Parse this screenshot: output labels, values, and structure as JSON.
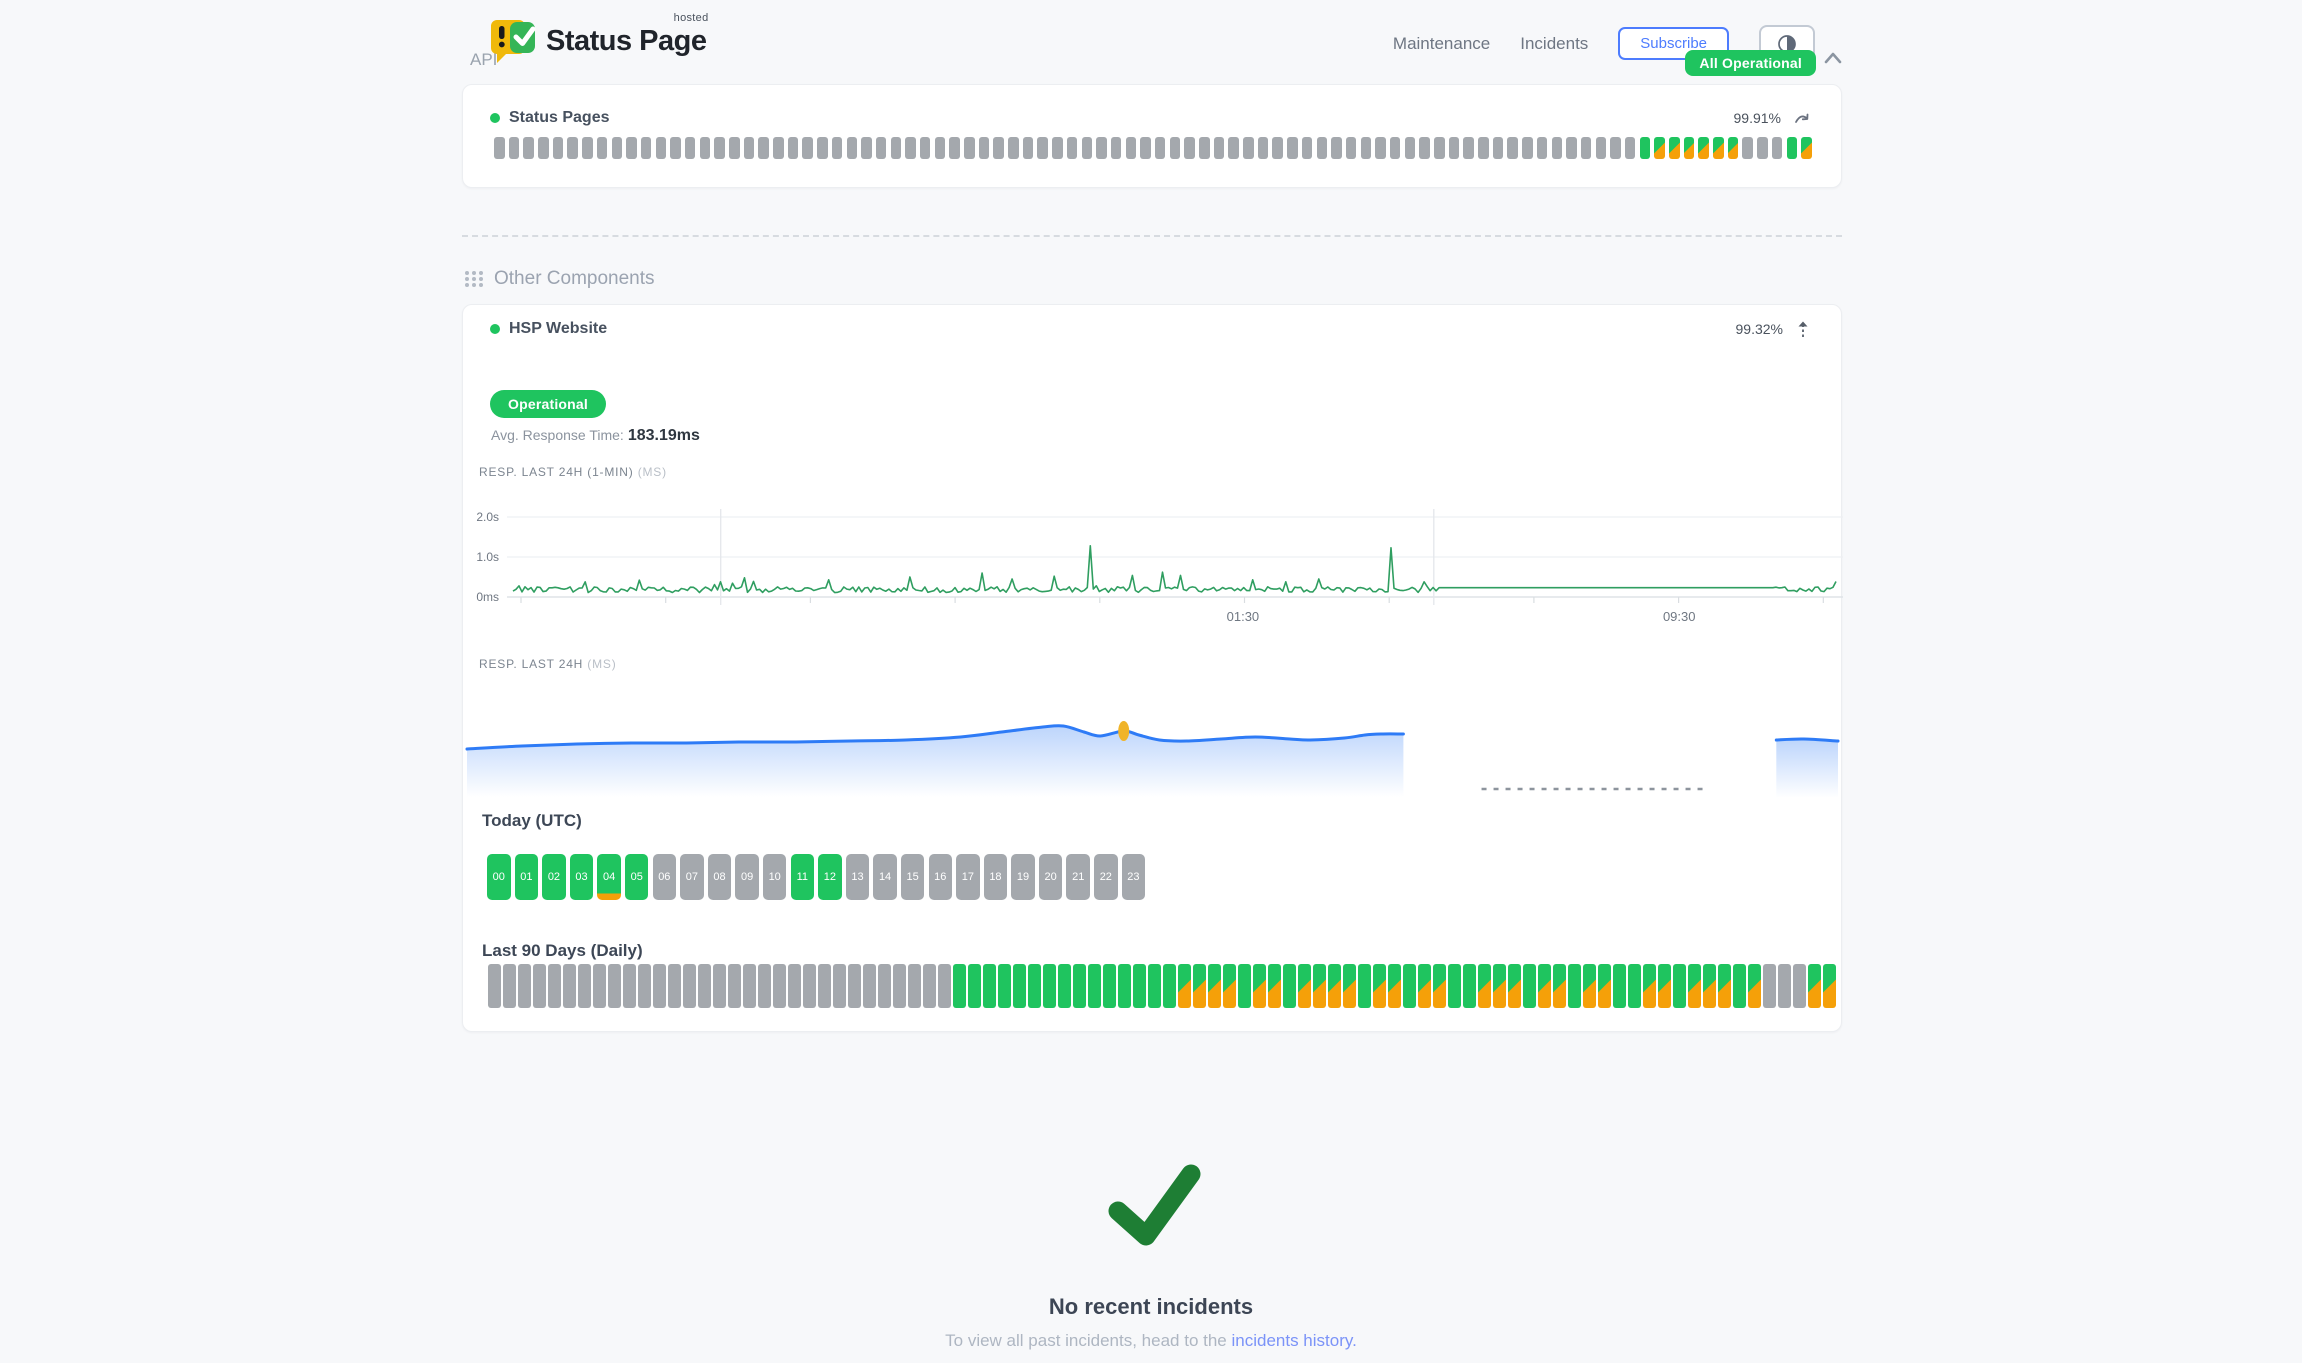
{
  "header": {
    "brand": {
      "name": "Status Page",
      "hosted": "hosted"
    },
    "nav": [
      {
        "label": "Maintenance"
      },
      {
        "label": "Incidents"
      }
    ],
    "subscribe_label": "Subscribe",
    "status_badge": "All Operational"
  },
  "api_section": {
    "title": "API",
    "component": {
      "name": "Status Pages",
      "uptime_pct": "99.91%",
      "bars": "nnnnnnnnnnnnnnnnnnnnnnnnnnnnnnnnnnnnnnnnnnnnnnnnnnnnnnnnnnnnnnnnnnnnnnnnnnnnnnuddddddnnnud"
    }
  },
  "other_section": {
    "title": "Other Components",
    "component": {
      "name": "HSP Website",
      "uptime_pct": "99.32%",
      "status": "Operational",
      "avg_response_label": "Avg. Response Time:",
      "avg_response_value": "183.19ms",
      "resp_1min_label": "RESP. LAST 24H (1-MIN)",
      "resp_1min_unit": "(MS)",
      "resp_24h_label": "RESP. LAST 24H",
      "resp_24h_unit": "(MS)",
      "today_label": "Today (UTC)",
      "hours": [
        {
          "label": "00",
          "state": "u"
        },
        {
          "label": "01",
          "state": "u"
        },
        {
          "label": "02",
          "state": "u"
        },
        {
          "label": "03",
          "state": "u"
        },
        {
          "label": "04",
          "state": "o"
        },
        {
          "label": "05",
          "state": "u"
        },
        {
          "label": "06",
          "state": "n"
        },
        {
          "label": "07",
          "state": "n"
        },
        {
          "label": "08",
          "state": "n"
        },
        {
          "label": "09",
          "state": "n"
        },
        {
          "label": "10",
          "state": "n"
        },
        {
          "label": "11",
          "state": "u"
        },
        {
          "label": "12",
          "state": "u"
        },
        {
          "label": "13",
          "state": "n"
        },
        {
          "label": "14",
          "state": "n"
        },
        {
          "label": "15",
          "state": "n"
        },
        {
          "label": "16",
          "state": "n"
        },
        {
          "label": "17",
          "state": "n"
        },
        {
          "label": "18",
          "state": "n"
        },
        {
          "label": "19",
          "state": "n"
        },
        {
          "label": "20",
          "state": "n"
        },
        {
          "label": "21",
          "state": "n"
        },
        {
          "label": "22",
          "state": "n"
        },
        {
          "label": "23",
          "state": "n"
        }
      ],
      "last90_label": "Last 90 Days (Daily)",
      "days": "nnnnnnnnnnnnnnnnnnnnnnnnnnnnnnnuuuuuuuuuuuuuuudddduddudddduddudduuddduddudduuddudddudnnndd"
    }
  },
  "chart_data": [
    {
      "id": "resp_last_24h_1min",
      "type": "line",
      "title": "RESP. LAST 24H (1-MIN)",
      "unit": "MS",
      "ylim_ms": [
        0,
        2300
      ],
      "yticks": [
        {
          "label": "2.0s",
          "ms": 2000
        },
        {
          "label": "1.0s",
          "ms": 1000
        },
        {
          "label": "0ms",
          "ms": 0
        }
      ],
      "xticks": [
        {
          "label": "01:30",
          "pos": 0.5517
        },
        {
          "label": "09:30",
          "pos": 0.8815
        }
      ],
      "vgridlines": [
        0.157,
        0.696
      ],
      "line_color": "#2f9e60",
      "baseline_ms": {
        "min": 110,
        "max": 255
      },
      "spikes": [
        {
          "pos": 0.055,
          "ms": 380
        },
        {
          "pos": 0.095,
          "ms": 420
        },
        {
          "pos": 0.175,
          "ms": 480
        },
        {
          "pos": 0.238,
          "ms": 430
        },
        {
          "pos": 0.3,
          "ms": 500
        },
        {
          "pos": 0.355,
          "ms": 600
        },
        {
          "pos": 0.378,
          "ms": 450
        },
        {
          "pos": 0.41,
          "ms": 520
        },
        {
          "pos": 0.436,
          "ms": 1280
        },
        {
          "pos": 0.468,
          "ms": 540
        },
        {
          "pos": 0.492,
          "ms": 620
        },
        {
          "pos": 0.505,
          "ms": 540
        },
        {
          "pos": 0.56,
          "ms": 430
        },
        {
          "pos": 0.61,
          "ms": 450
        },
        {
          "pos": 0.664,
          "ms": 1230
        },
        {
          "pos": 0.688,
          "ms": 380
        }
      ],
      "flat_segment": {
        "from": 0.7,
        "to": 0.953,
        "ms": 232
      },
      "noisy_tail": {
        "from": 0.953,
        "to": 1.0
      }
    },
    {
      "id": "resp_last_24h",
      "type": "area",
      "title": "RESP. LAST 24H",
      "unit": "MS",
      "line_color": "#2e7bf6",
      "marker": {
        "pos": 0.479,
        "y": 30,
        "color": "#f0b429"
      },
      "points": [
        [
          0,
          48
        ],
        [
          0.04,
          45
        ],
        [
          0.08,
          43
        ],
        [
          0.12,
          42
        ],
        [
          0.16,
          42
        ],
        [
          0.2,
          41
        ],
        [
          0.24,
          41
        ],
        [
          0.28,
          40
        ],
        [
          0.32,
          39
        ],
        [
          0.36,
          36
        ],
        [
          0.39,
          31
        ],
        [
          0.42,
          26
        ],
        [
          0.435,
          25
        ],
        [
          0.45,
          31
        ],
        [
          0.462,
          35
        ],
        [
          0.479,
          30
        ],
        [
          0.49,
          34
        ],
        [
          0.505,
          39
        ],
        [
          0.525,
          40
        ],
        [
          0.55,
          38
        ],
        [
          0.575,
          36
        ],
        [
          0.6,
          38
        ],
        [
          0.615,
          39
        ],
        [
          0.64,
          37
        ],
        [
          0.655,
          34
        ],
        [
          0.668,
          33
        ],
        [
          0.683,
          33
        ]
      ],
      "gap": {
        "from": 0.683,
        "to": 0.955
      },
      "dashed_segment": {
        "from": 0.74,
        "to": 0.905,
        "y": 88
      },
      "resume_points": [
        [
          0.955,
          39
        ],
        [
          0.975,
          38
        ],
        [
          1.0,
          40
        ]
      ]
    }
  ],
  "footer": {
    "title": "No recent incidents",
    "subtitle_prefix": "To view all past incidents, head to the ",
    "link_text": "incidents history."
  },
  "colors": {
    "up_green": "#1fc45f",
    "degraded_orange": "#f5a009",
    "nodata_gray": "#a4a8ad",
    "chart_line_green": "#2f9e60",
    "chart_line_blue": "#2e7bf6",
    "marker_amber": "#f0b429",
    "subscribe_blue": "#4d7cfe",
    "link_blue": "#7b93f8",
    "check_green": "#1e7e34"
  }
}
